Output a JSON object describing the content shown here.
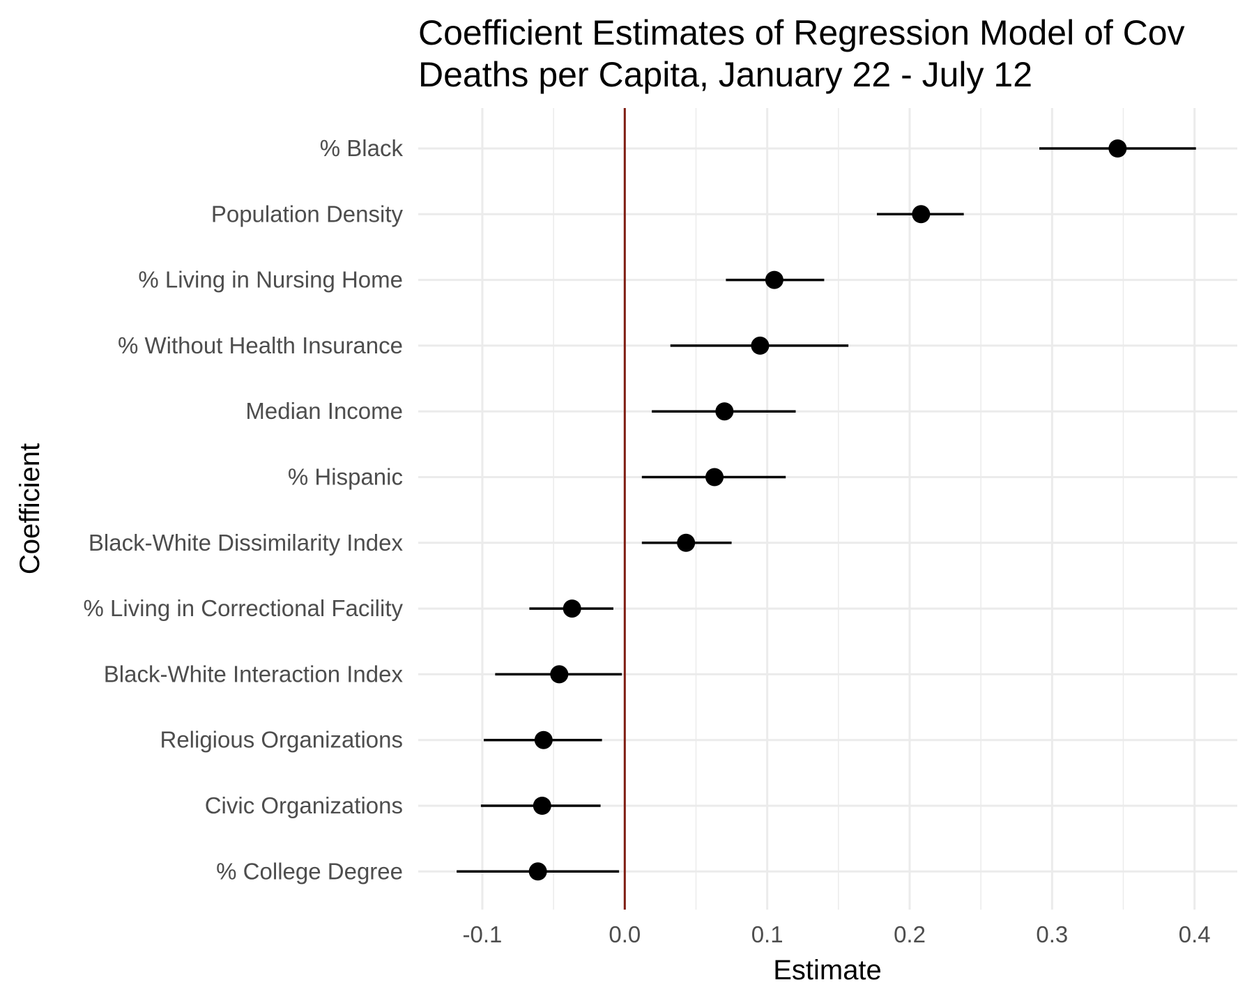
{
  "chart_data": {
    "type": "scatter",
    "subtype": "coefficient-plot",
    "title_lines": [
      "Coefficient Estimates of Regression Model of Cov",
      "Deaths per Capita, January 22 - July 12"
    ],
    "xlabel": "Estimate",
    "ylabel": "Coefficient",
    "xlim": [
      -0.145,
      0.43
    ],
    "x_ticks": [
      -0.1,
      0.0,
      0.1,
      0.2,
      0.3,
      0.4
    ],
    "x_tick_labels": [
      "-0.1",
      "0.0",
      "0.1",
      "0.2",
      "0.3",
      "0.4"
    ],
    "reference_line": 0,
    "grid": true,
    "colors": {
      "point": "#000000",
      "interval": "#000000",
      "reference_line": "#7f1d12",
      "grid": "#ebebeb"
    },
    "coefficients": [
      {
        "label": "% Black",
        "estimate": 0.346,
        "low": 0.291,
        "high": 0.401
      },
      {
        "label": "Population Density",
        "estimate": 0.208,
        "low": 0.177,
        "high": 0.238
      },
      {
        "label": "% Living in Nursing Home",
        "estimate": 0.105,
        "low": 0.071,
        "high": 0.14
      },
      {
        "label": "% Without Health Insurance",
        "estimate": 0.095,
        "low": 0.032,
        "high": 0.157
      },
      {
        "label": "Median Income",
        "estimate": 0.07,
        "low": 0.019,
        "high": 0.12
      },
      {
        "label": "% Hispanic",
        "estimate": 0.063,
        "low": 0.012,
        "high": 0.113
      },
      {
        "label": "Black-White Dissimilarity Index",
        "estimate": 0.043,
        "low": 0.012,
        "high": 0.075
      },
      {
        "label": "% Living in Correctional Facility",
        "estimate": -0.037,
        "low": -0.067,
        "high": -0.008
      },
      {
        "label": "Black-White Interaction Index",
        "estimate": -0.046,
        "low": -0.091,
        "high": -0.002
      },
      {
        "label": "Religious Organizations",
        "estimate": -0.057,
        "low": -0.099,
        "high": -0.016
      },
      {
        "label": "Civic Organizations",
        "estimate": -0.058,
        "low": -0.101,
        "high": -0.017
      },
      {
        "label": "% College Degree",
        "estimate": -0.061,
        "low": -0.118,
        "high": -0.004
      }
    ]
  }
}
